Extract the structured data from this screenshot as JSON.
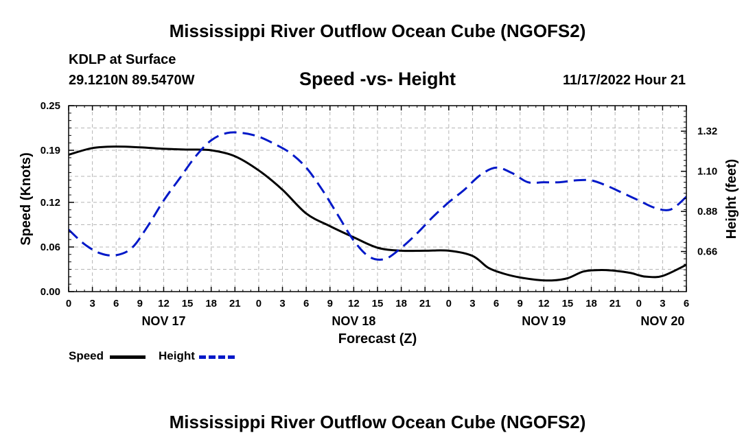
{
  "header": {
    "title": "Mississippi River Outflow Ocean Cube (NGOFS2)",
    "station": "KDLP at Surface",
    "coordinates": "29.1210N  89.5470W",
    "subtitle": "Speed -vs- Height",
    "datetime": "11/17/2022 Hour 21"
  },
  "footer": {
    "title": "Mississippi River Outflow Ocean Cube (NGOFS2)"
  },
  "legend": {
    "speed_label": "Speed",
    "height_label": "Height"
  },
  "colors": {
    "speed": "#000000",
    "height": "#0018c8",
    "grid": "#b4b4b4"
  },
  "chart_data": {
    "type": "line",
    "title": "Speed -vs- Height",
    "xlabel": "Forecast (Z)",
    "ylabel": "Speed (Knots)",
    "y2label": "Height (feet)",
    "x_unit": "hours from NOV 17 00Z",
    "xlim": [
      0,
      78
    ],
    "ylim": [
      0,
      0.25
    ],
    "y2lim": [
      0.44,
      1.46
    ],
    "x_ticks": [
      0,
      3,
      6,
      9,
      12,
      15,
      18,
      21,
      24,
      27,
      30,
      33,
      36,
      39,
      42,
      45,
      48,
      51,
      54,
      57,
      60,
      63,
      66,
      69,
      72,
      75,
      78
    ],
    "x_tick_labels": [
      "0",
      "3",
      "6",
      "9",
      "12",
      "15",
      "18",
      "21",
      "0",
      "3",
      "6",
      "9",
      "12",
      "15",
      "18",
      "21",
      "0",
      "3",
      "6",
      "9",
      "12",
      "15",
      "18",
      "21",
      "0",
      "3",
      "6"
    ],
    "day_labels": [
      {
        "x": 12,
        "label": "NOV 17"
      },
      {
        "x": 36,
        "label": "NOV 18"
      },
      {
        "x": 60,
        "label": "NOV 19"
      },
      {
        "x": 75,
        "label": "NOV 20"
      }
    ],
    "y_ticks": [
      0.0,
      0.06,
      0.12,
      0.19,
      0.25
    ],
    "y_tick_labels": [
      "0.00",
      "0.06",
      "0.12",
      "0.19",
      "0.25"
    ],
    "y2_ticks": [
      0.66,
      0.88,
      1.1,
      1.32
    ],
    "y2_tick_labels": [
      "0.66",
      "0.88",
      "1.10",
      "1.32"
    ],
    "grid": true,
    "series": [
      {
        "name": "Speed",
        "axis": "left",
        "style": "solid",
        "x": [
          0,
          3,
          6,
          9,
          12,
          15,
          18,
          21,
          24,
          27,
          30,
          33,
          36,
          39,
          42,
          45,
          48,
          51,
          53,
          55,
          57,
          59,
          61,
          63,
          65,
          67,
          69,
          71,
          72,
          73,
          75,
          78
        ],
        "values": [
          0.184,
          0.193,
          0.195,
          0.194,
          0.192,
          0.191,
          0.19,
          0.182,
          0.163,
          0.137,
          0.105,
          0.088,
          0.073,
          0.059,
          0.055,
          0.055,
          0.055,
          0.048,
          0.032,
          0.024,
          0.019,
          0.016,
          0.015,
          0.018,
          0.027,
          0.029,
          0.028,
          0.025,
          0.022,
          0.02,
          0.021,
          0.036
        ]
      },
      {
        "name": "Height",
        "axis": "right",
        "style": "dashed",
        "x": [
          0,
          2,
          4,
          6,
          8,
          10,
          12,
          14,
          16,
          18,
          20,
          22,
          24,
          26,
          28,
          30,
          32,
          34,
          36,
          38,
          40,
          42,
          44,
          46,
          48,
          50,
          52,
          54,
          56,
          58,
          60,
          62,
          64,
          66,
          68,
          70,
          72,
          74,
          76,
          78
        ],
        "values": [
          0.78,
          0.7,
          0.65,
          0.64,
          0.68,
          0.8,
          0.94,
          1.06,
          1.18,
          1.27,
          1.31,
          1.31,
          1.29,
          1.25,
          1.2,
          1.12,
          1.0,
          0.86,
          0.72,
          0.63,
          0.62,
          0.68,
          0.76,
          0.85,
          0.93,
          1.0,
          1.08,
          1.12,
          1.09,
          1.04,
          1.04,
          1.04,
          1.05,
          1.05,
          1.02,
          0.98,
          0.94,
          0.9,
          0.89,
          0.96
        ]
      }
    ]
  }
}
